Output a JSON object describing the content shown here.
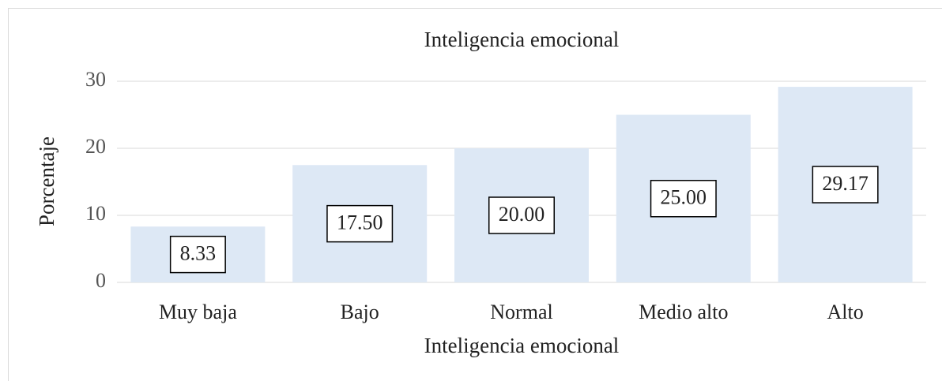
{
  "chart_data": {
    "type": "bar",
    "title": "Inteligencia emocional",
    "x_label": "Inteligencia emocional",
    "y_label": "Porcentaje",
    "categories": [
      "Muy baja",
      "Bajo",
      "Normal",
      "Medio alto",
      "Alto"
    ],
    "values": [
      8.33,
      17.5,
      20,
      25,
      29.17
    ],
    "value_labels": [
      "8.33",
      "17.50",
      "20.00",
      "25.00",
      "29.17"
    ],
    "color": "#dde8f5",
    "ylim": [
      0,
      30
    ],
    "yticks": [
      0,
      10,
      20,
      30
    ],
    "grid": true
  }
}
